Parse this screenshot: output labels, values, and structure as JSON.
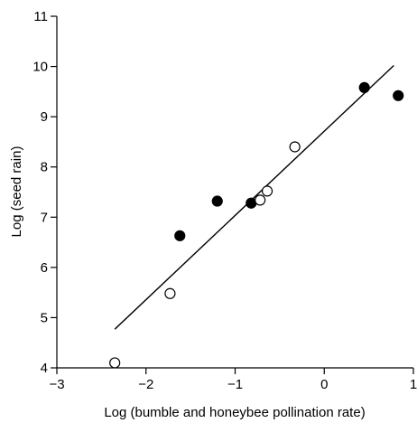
{
  "chart_data": {
    "type": "scatter",
    "title": "",
    "xlabel": "Log (bumble and honeybee pollination rate)",
    "ylabel": "Log (seed rain)",
    "xlim": [
      -3,
      1
    ],
    "ylim": [
      4,
      11
    ],
    "xticks": [
      -3,
      -2,
      -1,
      0,
      1
    ],
    "yticks": [
      4,
      5,
      6,
      7,
      8,
      9,
      10,
      11
    ],
    "xtick_labels": [
      "−3",
      "−2",
      "−1",
      "0",
      "1"
    ],
    "ytick_labels": [
      "4",
      "5",
      "6",
      "7",
      "8",
      "9",
      "10",
      "11"
    ],
    "grid": false,
    "series": [
      {
        "marker": "filled-circle",
        "color": "#000000",
        "points": [
          {
            "x": -1.62,
            "y": 6.63
          },
          {
            "x": -1.2,
            "y": 7.32
          },
          {
            "x": -0.82,
            "y": 7.28
          },
          {
            "x": 0.45,
            "y": 9.58
          },
          {
            "x": 0.83,
            "y": 9.42
          }
        ]
      },
      {
        "marker": "open-circle",
        "color": "#000000",
        "points": [
          {
            "x": -2.35,
            "y": 4.1
          },
          {
            "x": -1.73,
            "y": 5.48
          },
          {
            "x": -0.72,
            "y": 7.34
          },
          {
            "x": -0.64,
            "y": 7.52
          },
          {
            "x": -0.33,
            "y": 8.4
          }
        ]
      }
    ],
    "fit_line": {
      "x": [
        -2.35,
        0.78
      ],
      "y": [
        4.77,
        10.02
      ]
    }
  }
}
